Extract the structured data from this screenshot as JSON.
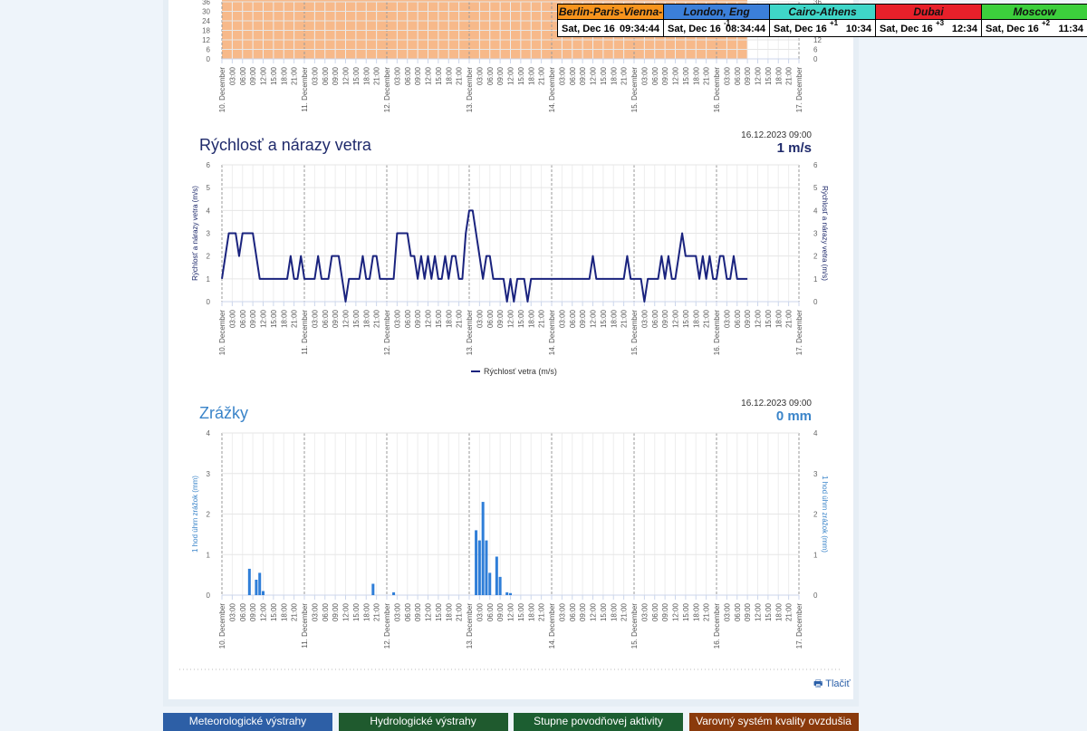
{
  "clocks": [
    {
      "city": "Berlin-Paris-Vienna-Roma",
      "color": "#f7941d",
      "date": "Sat, Dec 16",
      "time": "09:34:44"
    },
    {
      "city": "London, Eng",
      "color": "#3b7fd9",
      "date": "Sat, Dec 16",
      "offset": "-1",
      "time": "08:34:44"
    },
    {
      "city": "Cairo-Athens",
      "color": "#3fd6c8",
      "date": "Sat, Dec 16",
      "offset": "+1",
      "time": "10:34"
    },
    {
      "city": "Dubai",
      "color": "#e8202a",
      "date": "Sat, Dec 16",
      "offset": "+3",
      "time": "12:34"
    },
    {
      "city": "Moscow",
      "color": "#3ccf3c",
      "date": "Sat, Dec 16",
      "offset": "+2",
      "time": "11:34"
    }
  ],
  "time_axis": {
    "labels": [
      "10. December",
      "03:00",
      "06:00",
      "09:00",
      "12:00",
      "15:00",
      "18:00",
      "21:00",
      "11. December",
      "03:00",
      "06:00",
      "09:00",
      "12:00",
      "15:00",
      "18:00",
      "21:00",
      "12. December",
      "03:00",
      "06:00",
      "09:00",
      "12:00",
      "15:00",
      "18:00",
      "21:00",
      "13. December",
      "03:00",
      "06:00",
      "09:00",
      "12:00",
      "15:00",
      "18:00",
      "21:00",
      "14. December",
      "03:00",
      "06:00",
      "09:00",
      "12:00",
      "15:00",
      "18:00",
      "21:00",
      "15. December",
      "03:00",
      "06:00",
      "09:00",
      "12:00",
      "15:00",
      "18:00",
      "21:00",
      "16. December",
      "03:00",
      "06:00",
      "09:00",
      "12:00",
      "15:00",
      "18:00",
      "21:00",
      "17. December"
    ]
  },
  "top_chart": {
    "color": "#f7b98a",
    "ylim": [
      0,
      36
    ],
    "yticks": [
      0,
      6,
      12,
      18,
      24,
      30,
      36
    ]
  },
  "wind_chart": {
    "type": "line",
    "title": "Rýchlosť a nárazy vetra",
    "timestamp": "16.12.2023 09:00",
    "current": "1 m/s",
    "y_label": "Rýchlosť a nárazy vetra (m/s)",
    "ylim": [
      0,
      6
    ],
    "yticks": [
      0,
      1,
      2,
      3,
      4,
      5,
      6
    ],
    "series": [
      {
        "name": "Rýchlosť vetra (m/s)",
        "color": "#1a237e",
        "values": [
          1,
          2,
          3,
          3,
          3,
          2,
          3,
          3,
          3,
          3,
          2,
          1,
          1,
          1,
          1,
          1,
          1,
          1,
          1,
          1,
          2,
          1,
          1,
          2,
          1,
          1,
          1,
          1,
          2,
          1,
          1,
          1,
          2,
          2,
          2,
          1,
          0,
          1,
          1,
          1,
          1,
          2,
          1,
          1,
          2,
          2,
          1,
          1,
          1,
          1,
          1,
          3,
          3,
          3,
          3,
          2,
          2,
          1,
          2,
          1,
          2,
          1,
          2,
          1,
          1,
          2,
          1,
          2,
          2,
          1,
          1,
          3,
          4,
          4,
          3,
          2,
          1,
          2,
          2,
          1,
          1,
          1,
          1,
          0,
          1,
          0,
          1,
          1,
          1,
          0,
          1,
          1,
          1,
          1,
          1,
          1,
          1,
          1,
          1,
          1,
          1,
          1,
          1,
          1,
          1,
          1,
          1,
          1,
          2,
          1,
          1,
          1,
          1,
          1,
          1,
          1,
          1,
          1,
          2,
          1,
          1,
          1,
          1,
          0,
          1,
          1,
          1,
          1,
          2,
          1,
          2,
          1,
          1,
          2,
          3,
          2,
          2,
          2,
          2,
          1,
          2,
          1,
          2,
          1,
          1,
          2,
          2,
          1,
          1,
          2,
          1,
          1,
          1,
          1
        ]
      }
    ]
  },
  "rain_chart": {
    "type": "bar",
    "title": "Zrážky",
    "timestamp": "16.12.2023 09:00",
    "current": "0 mm",
    "y_label": "1 hod úhrn zrážok (mm)",
    "ylim": [
      0,
      4
    ],
    "yticks": [
      0,
      1,
      2,
      3,
      4
    ],
    "series": [
      {
        "color": "#2f7ed8",
        "values": [
          0,
          0,
          0,
          0,
          0,
          0,
          0,
          0,
          0.65,
          0,
          0.38,
          0.55,
          0.1,
          0,
          0,
          0,
          0,
          0,
          0,
          0,
          0,
          0,
          0,
          0,
          0,
          0,
          0,
          0,
          0,
          0,
          0,
          0,
          0,
          0,
          0,
          0,
          0,
          0,
          0,
          0,
          0,
          0,
          0,
          0,
          0.28,
          0,
          0,
          0,
          0,
          0,
          0.07,
          0,
          0,
          0,
          0,
          0,
          0,
          0,
          0,
          0,
          0,
          0,
          0,
          0,
          0,
          0,
          0,
          0,
          0,
          0,
          0,
          0,
          0,
          0,
          1.6,
          1.35,
          2.3,
          1.35,
          0.55,
          0,
          0.95,
          0.45,
          0,
          0.07,
          0.05,
          0,
          0,
          0,
          0,
          0,
          0,
          0,
          0,
          0,
          0,
          0,
          0,
          0,
          0,
          0,
          0,
          0,
          0,
          0,
          0,
          0,
          0,
          0,
          0,
          0,
          0,
          0,
          0,
          0,
          0,
          0,
          0,
          0,
          0,
          0,
          0,
          0,
          0,
          0,
          0,
          0,
          0,
          0,
          0,
          0,
          0,
          0,
          0,
          0,
          0,
          0,
          0,
          0,
          0,
          0,
          0,
          0,
          0,
          0,
          0,
          0,
          0,
          0,
          0,
          0,
          0,
          0,
          0,
          0
        ]
      }
    ]
  },
  "print": "Tlačiť",
  "nav": [
    {
      "label": "Meteorologické výstrahy",
      "color": "#2d5fa6"
    },
    {
      "label": "Hydrologické výstrahy",
      "color": "#1f5a2e"
    },
    {
      "label": "Stupne povodňovej aktivity",
      "color": "#1c5e31"
    },
    {
      "label": "Varovný systém kvality ovzdušia",
      "color": "#8a3a0c"
    }
  ]
}
